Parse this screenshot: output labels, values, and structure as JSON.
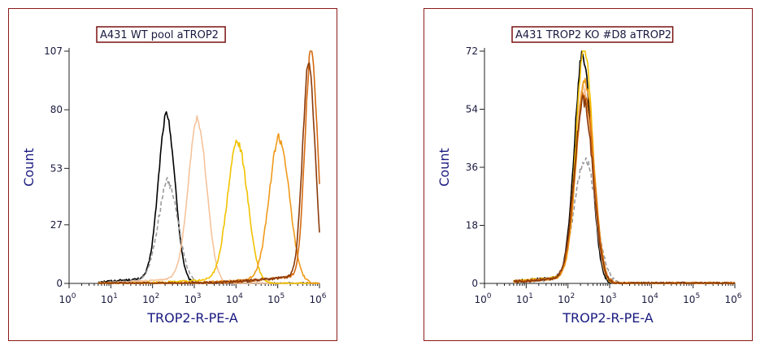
{
  "chart_data": [
    {
      "type": "line",
      "title": "A431 WT pool aTROP2",
      "xlabel": "TROP2-R-PE-A",
      "ylabel": "Count",
      "xscale": "log",
      "xlim": [
        1,
        1000000
      ],
      "ylim": [
        0,
        107
      ],
      "xticks": [
        {
          "base": "10",
          "exp": "0"
        },
        {
          "base": "10",
          "exp": "1"
        },
        {
          "base": "10",
          "exp": "2"
        },
        {
          "base": "10",
          "exp": "3"
        },
        {
          "base": "10",
          "exp": "4"
        },
        {
          "base": "10",
          "exp": "5"
        },
        {
          "base": "10",
          "exp": "6"
        }
      ],
      "yticks": [
        0,
        27,
        53,
        80,
        107
      ],
      "series": [
        {
          "color": "#000000",
          "dash": false,
          "peak_x": 220,
          "peak_y": 76,
          "width": 0.2,
          "noise": 1.4
        },
        {
          "color": "#9a9a9a",
          "dash": true,
          "peak_x": 240,
          "peak_y": 46,
          "width": 0.24,
          "noise": 1.4
        },
        {
          "color": "#f5c39c",
          "dash": false,
          "peak_x": 1200,
          "peak_y": 74,
          "width": 0.22,
          "noise": 1.0
        },
        {
          "color": "#f2c200",
          "dash": false,
          "peak_x": 11000,
          "peak_y": 64,
          "width": 0.24,
          "noise": 1.5
        },
        {
          "color": "#f09a1a",
          "dash": false,
          "peak_x": 110000,
          "peak_y": 66,
          "width": 0.24,
          "noise": 1.5
        },
        {
          "color": "#d66a10",
          "dash": false,
          "peak_x": 640000,
          "peak_y": 106,
          "width": 0.15,
          "noise": 2.0
        },
        {
          "color": "#8b3a0a",
          "dash": false,
          "peak_x": 560000,
          "peak_y": 100,
          "width": 0.15,
          "noise": 2.0
        }
      ]
    },
    {
      "type": "line",
      "title": "A431 TROP2 KO #D8 aTROP2",
      "xlabel": "TROP2-R-PE-A",
      "ylabel": "Count",
      "xscale": "log",
      "xlim": [
        1,
        1000000
      ],
      "ylim": [
        0,
        72
      ],
      "xticks": [
        {
          "base": "10",
          "exp": "0"
        },
        {
          "base": "10",
          "exp": "1"
        },
        {
          "base": "10",
          "exp": "2"
        },
        {
          "base": "10",
          "exp": "3"
        },
        {
          "base": "10",
          "exp": "4"
        },
        {
          "base": "10",
          "exp": "5"
        },
        {
          "base": "10",
          "exp": "6"
        }
      ],
      "yticks": [
        0,
        18,
        36,
        54,
        72
      ],
      "series": [
        {
          "color": "#000000",
          "dash": false,
          "peak_x": 230,
          "peak_y": 70,
          "width": 0.2,
          "noise": 1.2
        },
        {
          "color": "#9a9a9a",
          "dash": true,
          "peak_x": 260,
          "peak_y": 38,
          "width": 0.26,
          "noise": 1.2
        },
        {
          "color": "#f5c39c",
          "dash": false,
          "peak_x": 240,
          "peak_y": 60,
          "width": 0.21,
          "noise": 1.0
        },
        {
          "color": "#f2c200",
          "dash": false,
          "peak_x": 250,
          "peak_y": 72,
          "width": 0.2,
          "noise": 1.2
        },
        {
          "color": "#f09a1a",
          "dash": false,
          "peak_x": 260,
          "peak_y": 62,
          "width": 0.21,
          "noise": 1.2
        },
        {
          "color": "#d66a10",
          "dash": false,
          "peak_x": 250,
          "peak_y": 58,
          "width": 0.22,
          "noise": 1.4
        },
        {
          "color": "#8b3a0a",
          "dash": false,
          "peak_x": 240,
          "peak_y": 56,
          "width": 0.22,
          "noise": 1.4
        }
      ]
    }
  ]
}
